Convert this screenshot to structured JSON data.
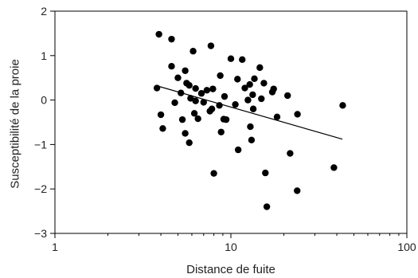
{
  "chart_data": {
    "type": "scatter",
    "xlabel": "Distance de fuite",
    "ylabel": "Susceptibilité de la proie",
    "x_scale": "log",
    "xlim": [
      1,
      100
    ],
    "ylim": [
      -3,
      2
    ],
    "x_ticks": [
      1,
      10,
      100
    ],
    "x_tick_labels": [
      "1",
      "10",
      "100"
    ],
    "y_ticks": [
      -3,
      -2,
      -1,
      0,
      1,
      2
    ],
    "y_tick_labels": [
      "−3",
      "−2",
      "−1",
      "0",
      "1",
      "2"
    ],
    "grid": false,
    "legend": "none",
    "colors": {
      "points": "#000000",
      "line": "#000000",
      "axes": "#000000"
    },
    "points": [
      {
        "x": 3.9,
        "y": 1.48
      },
      {
        "x": 4.6,
        "y": 1.37
      },
      {
        "x": 7.7,
        "y": 1.22
      },
      {
        "x": 6.1,
        "y": 1.1
      },
      {
        "x": 5.5,
        "y": 0.66
      },
      {
        "x": 4.6,
        "y": 0.76
      },
      {
        "x": 10.0,
        "y": 0.93
      },
      {
        "x": 11.6,
        "y": 0.91
      },
      {
        "x": 13.6,
        "y": 0.48
      },
      {
        "x": 14.6,
        "y": 0.73
      },
      {
        "x": 3.8,
        "y": 0.27
      },
      {
        "x": 5.0,
        "y": 0.5
      },
      {
        "x": 5.6,
        "y": 0.38
      },
      {
        "x": 5.8,
        "y": 0.33
      },
      {
        "x": 6.3,
        "y": 0.26
      },
      {
        "x": 7.3,
        "y": 0.22
      },
      {
        "x": 7.9,
        "y": 0.25
      },
      {
        "x": 8.7,
        "y": 0.55
      },
      {
        "x": 10.9,
        "y": 0.47
      },
      {
        "x": 12.0,
        "y": 0.27
      },
      {
        "x": 12.8,
        "y": 0.35
      },
      {
        "x": 13.3,
        "y": 0.12
      },
      {
        "x": 15.4,
        "y": 0.38
      },
      {
        "x": 17.5,
        "y": 0.25
      },
      {
        "x": 17.2,
        "y": 0.18
      },
      {
        "x": 21.0,
        "y": 0.1
      },
      {
        "x": 5.2,
        "y": 0.16
      },
      {
        "x": 5.9,
        "y": 0.04
      },
      {
        "x": 6.3,
        "y": -0.02
      },
      {
        "x": 7.0,
        "y": -0.05
      },
      {
        "x": 4.8,
        "y": -0.06
      },
      {
        "x": 6.8,
        "y": 0.15
      },
      {
        "x": 7.8,
        "y": -0.2
      },
      {
        "x": 8.6,
        "y": -0.12
      },
      {
        "x": 9.2,
        "y": 0.08
      },
      {
        "x": 10.6,
        "y": -0.1
      },
      {
        "x": 12.5,
        "y": 0.0
      },
      {
        "x": 13.4,
        "y": -0.2
      },
      {
        "x": 14.9,
        "y": 0.03
      },
      {
        "x": 4.0,
        "y": -0.33
      },
      {
        "x": 6.2,
        "y": -0.3
      },
      {
        "x": 6.5,
        "y": -0.42
      },
      {
        "x": 7.6,
        "y": -0.25
      },
      {
        "x": 9.1,
        "y": -0.43
      },
      {
        "x": 9.4,
        "y": -0.44
      },
      {
        "x": 12.9,
        "y": -0.6
      },
      {
        "x": 18.3,
        "y": -0.38
      },
      {
        "x": 23.9,
        "y": -0.32
      },
      {
        "x": 4.1,
        "y": -0.64
      },
      {
        "x": 5.3,
        "y": -0.44
      },
      {
        "x": 5.5,
        "y": -0.75
      },
      {
        "x": 5.8,
        "y": -0.96
      },
      {
        "x": 8.8,
        "y": -0.72
      },
      {
        "x": 13.1,
        "y": -0.9
      },
      {
        "x": 11.0,
        "y": -1.12
      },
      {
        "x": 21.7,
        "y": -1.2
      },
      {
        "x": 43.2,
        "y": -0.12
      },
      {
        "x": 8.0,
        "y": -1.65
      },
      {
        "x": 15.7,
        "y": -1.64
      },
      {
        "x": 38.5,
        "y": -1.52
      },
      {
        "x": 23.8,
        "y": -2.04
      },
      {
        "x": 16.0,
        "y": -2.4
      }
    ],
    "trend_line": {
      "x": [
        3.8,
        43.0
      ],
      "y": [
        0.32,
        -0.88
      ]
    }
  }
}
